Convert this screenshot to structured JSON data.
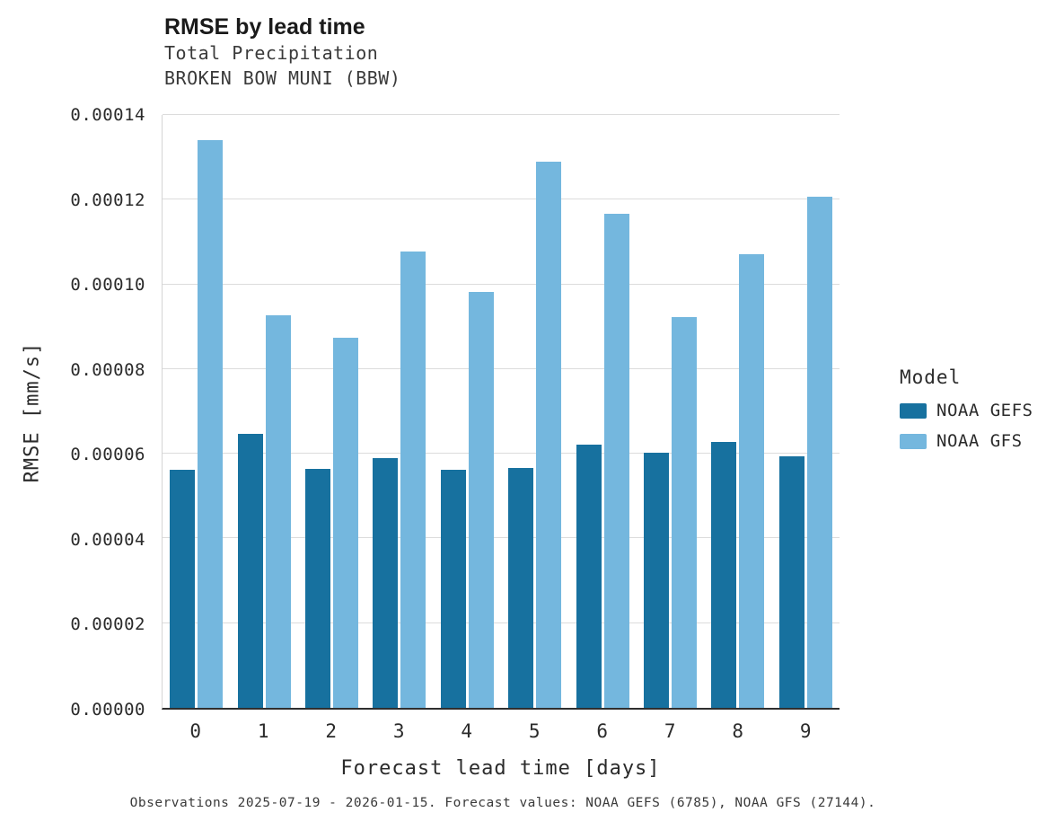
{
  "header": {
    "title": "RMSE by lead time",
    "subtitle1": "Total Precipitation",
    "subtitle2": "BROKEN BOW MUNI (BBW)"
  },
  "chart_data": {
    "type": "bar",
    "title": "RMSE by lead time",
    "subtitle": [
      "Total Precipitation",
      "BROKEN BOW MUNI (BBW)"
    ],
    "categories": [
      "0",
      "1",
      "2",
      "3",
      "4",
      "5",
      "6",
      "7",
      "8",
      "9"
    ],
    "series": [
      {
        "name": "NOAA GEFS",
        "color": "#17719f",
        "values": [
          5.63e-05,
          6.46e-05,
          5.65e-05,
          5.9e-05,
          5.63e-05,
          5.66e-05,
          6.21e-05,
          6.03e-05,
          6.28e-05,
          5.95e-05
        ]
      },
      {
        "name": "NOAA GFS",
        "color": "#74b7de",
        "values": [
          0.000134,
          9.28e-05,
          8.75e-05,
          0.0001078,
          9.82e-05,
          0.000129,
          0.0001166,
          9.23e-05,
          0.0001072,
          0.0001206
        ]
      }
    ],
    "xlabel": "Forecast lead time [days]",
    "ylabel": "RMSE [mm/s]",
    "ylim": [
      0,
      0.00014
    ],
    "yticks": [
      "0.00000",
      "0.00002",
      "0.00004",
      "0.00006",
      "0.00008",
      "0.00010",
      "0.00012",
      "0.00014"
    ],
    "grid": true,
    "legend_title": "Model",
    "legend_position": "right"
  },
  "legend": {
    "title": "Model",
    "items": [
      {
        "label": "NOAA GEFS"
      },
      {
        "label": "NOAA GFS"
      }
    ]
  },
  "caption": "Observations 2025-07-19 - 2026-01-15. Forecast values: NOAA GEFS (6785), NOAA GFS (27144)."
}
